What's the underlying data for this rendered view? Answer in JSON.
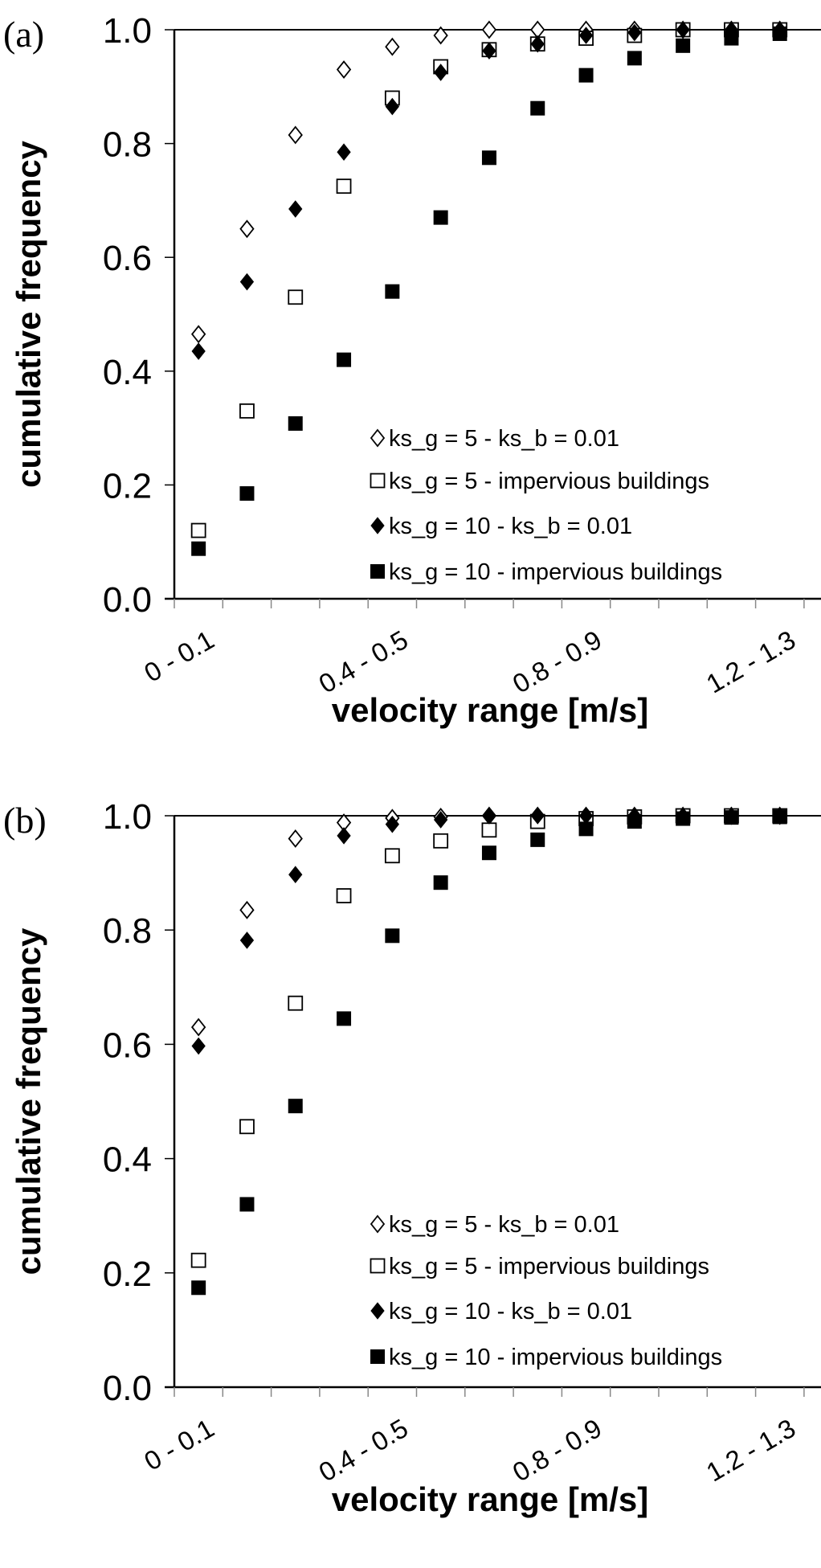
{
  "chart_data": [
    {
      "type": "scatter",
      "panel_label": "(a)",
      "xlabel": "velocity range [m/s]",
      "ylabel": "cumulative frequency",
      "ylim": [
        0,
        1.0
      ],
      "yticks": [
        "0.0",
        "0.2",
        "0.4",
        "0.6",
        "0.8",
        "1.0"
      ],
      "categories": [
        "0-0.1",
        "0.1-0.2",
        "0.2-0.3",
        "0.3-0.4",
        "0.4-0.5",
        "0.5-0.6",
        "0.6-0.7",
        "0.7-0.8",
        "0.8-0.9",
        "0.9-1.0",
        "1.0-1.1",
        "1.1-1.2",
        "1.2-1.3"
      ],
      "xtick_labels": [
        "0 - 0.1",
        "0.4 - 0.5",
        "0.8 - 0.9",
        "1.2 - 1.3"
      ],
      "grid": false,
      "legend_position": "bottom-right",
      "series": [
        {
          "name": "ks_g = 5 - ks_b = 0.01",
          "marker": "diamond-open",
          "values": [
            0.465,
            0.65,
            0.815,
            0.93,
            0.97,
            0.99,
            1.0,
            1.0,
            1.0,
            1.0,
            1.0,
            1.0,
            1.0
          ]
        },
        {
          "name": "ks_g = 5 - impervious buildings",
          "marker": "square-open",
          "values": [
            0.12,
            0.33,
            0.53,
            0.725,
            0.88,
            0.935,
            0.965,
            0.975,
            0.985,
            0.99,
            1.0,
            1.0,
            1.0
          ]
        },
        {
          "name": "ks_g = 10 - ks_b = 0.01",
          "marker": "diamond-filled",
          "values": [
            0.435,
            0.557,
            0.685,
            0.785,
            0.865,
            0.925,
            0.963,
            0.975,
            0.99,
            0.995,
            1.0,
            1.0,
            1.0
          ]
        },
        {
          "name": "ks_g = 10 - impervious buildings",
          "marker": "square-filled",
          "values": [
            0.088,
            0.185,
            0.308,
            0.42,
            0.54,
            0.67,
            0.775,
            0.862,
            0.92,
            0.95,
            0.972,
            0.985,
            0.993
          ]
        }
      ]
    },
    {
      "type": "scatter",
      "panel_label": "(b)",
      "xlabel": "velocity range [m/s]",
      "ylabel": "cumulative frequency",
      "ylim": [
        0,
        1.0
      ],
      "yticks": [
        "0.0",
        "0.2",
        "0.4",
        "0.6",
        "0.8",
        "1.0"
      ],
      "categories": [
        "0-0.1",
        "0.1-0.2",
        "0.2-0.3",
        "0.3-0.4",
        "0.4-0.5",
        "0.5-0.6",
        "0.6-0.7",
        "0.7-0.8",
        "0.8-0.9",
        "0.9-1.0",
        "1.0-1.1",
        "1.1-1.2",
        "1.2-1.3"
      ],
      "xtick_labels": [
        "0 - 0.1",
        "0.4 - 0.5",
        "0.8 - 0.9",
        "1.2 - 1.3"
      ],
      "grid": false,
      "legend_position": "bottom-right",
      "series": [
        {
          "name": "ks_g = 5 - ks_b = 0.01",
          "marker": "diamond-open",
          "values": [
            0.63,
            0.835,
            0.96,
            0.988,
            0.996,
            0.998,
            1.0,
            1.0,
            1.0,
            1.0,
            1.0,
            1.0,
            1.0
          ]
        },
        {
          "name": "ks_g = 5 - impervious buildings",
          "marker": "square-open",
          "values": [
            0.222,
            0.456,
            0.672,
            0.86,
            0.93,
            0.956,
            0.975,
            0.99,
            0.995,
            0.998,
            1.0,
            1.0,
            1.0
          ]
        },
        {
          "name": "ks_g = 10 - ks_b = 0.01",
          "marker": "diamond-filled",
          "values": [
            0.597,
            0.782,
            0.897,
            0.965,
            0.985,
            0.993,
            1.0,
            1.0,
            1.0,
            1.0,
            1.0,
            1.0,
            1.0
          ]
        },
        {
          "name": "ks_g = 10 - impervious buildings",
          "marker": "square-filled",
          "values": [
            0.174,
            0.32,
            0.492,
            0.645,
            0.79,
            0.883,
            0.935,
            0.958,
            0.977,
            0.99,
            0.995,
            0.997,
            0.998
          ]
        }
      ]
    }
  ]
}
